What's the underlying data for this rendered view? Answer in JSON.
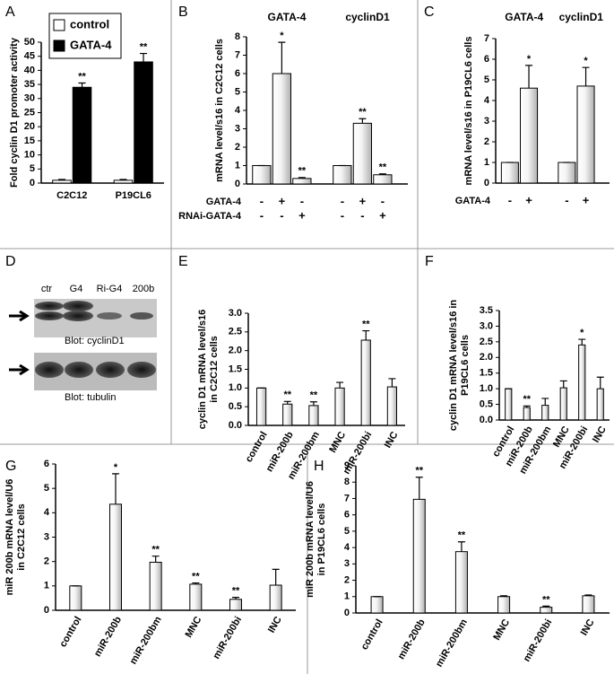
{
  "chart_data": [
    {
      "type": "bar",
      "panel": "A",
      "ylabel": [
        "Fold cyclin D1 promoter activity"
      ],
      "categories": [
        "C2C12",
        "P19CL6"
      ],
      "series": [
        {
          "name": "control",
          "color": "#ffffff",
          "values": [
            1,
            1
          ],
          "errors": [
            0.3,
            0.3
          ],
          "stars": [
            null,
            null
          ]
        },
        {
          "name": "GATA-4",
          "color": "#000000",
          "values": [
            34,
            43
          ],
          "errors": [
            1.5,
            3
          ],
          "stars": [
            "**",
            "**"
          ]
        }
      ],
      "ylim": [
        0,
        50
      ],
      "yticks": [
        0,
        5,
        10,
        15,
        20,
        25,
        30,
        35,
        40,
        45,
        50
      ]
    },
    {
      "type": "bar",
      "panel": "B",
      "ylabel": [
        "mRNA level/s16 in C2C12 cells"
      ],
      "groups": [
        "GATA-4",
        "cyclinD1"
      ],
      "values": [
        1,
        6,
        0.3,
        1,
        3.3,
        0.5
      ],
      "errors": [
        0,
        1.7,
        0.05,
        0,
        0.25,
        0.05
      ],
      "stars": [
        null,
        "*",
        "**",
        null,
        "**",
        "**"
      ],
      "color": "#b0b0b0",
      "conditions": [
        {
          "name": "GATA-4",
          "signs": [
            "-",
            "+",
            "-",
            "-",
            "+",
            "-"
          ]
        },
        {
          "name": "RNAi-GATA-4",
          "signs": [
            "-",
            "-",
            "+",
            "-",
            "-",
            "+"
          ]
        }
      ],
      "ylim": [
        0,
        8
      ],
      "yticks": [
        0,
        1,
        2,
        3,
        4,
        5,
        6,
        7,
        8
      ]
    },
    {
      "type": "bar",
      "panel": "C",
      "ylabel": [
        "mRNA level/s16 in P19CL6 cells"
      ],
      "groups": [
        "GATA-4",
        "cyclinD1"
      ],
      "values": [
        1,
        4.6,
        1,
        4.7
      ],
      "errors": [
        0,
        1.1,
        0,
        0.9
      ],
      "stars": [
        null,
        "*",
        null,
        "*"
      ],
      "color": "#b0b0b0",
      "conditions": [
        {
          "name": "GATA-4",
          "signs": [
            "-",
            "+",
            "-",
            "+"
          ]
        }
      ],
      "ylim": [
        0,
        7
      ],
      "yticks": [
        0,
        1,
        2,
        3,
        4,
        5,
        6,
        7
      ]
    },
    {
      "type": "bar",
      "panel": "E",
      "ylabel": [
        "cyclin D1 mRNA level/s16",
        "in C2C12 cells"
      ],
      "categories": [
        "control",
        "miR-200b",
        "miR-200bm",
        "MNC",
        "miR-200bi",
        "INC"
      ],
      "values": [
        1,
        0.57,
        0.53,
        1,
        2.28,
        1.03
      ],
      "errors": [
        0,
        0.07,
        0.1,
        0.15,
        0.25,
        0.22
      ],
      "stars": [
        null,
        "**",
        "**",
        null,
        "**",
        null
      ],
      "color": "#b0b0b0",
      "ylim": [
        0,
        3
      ],
      "yticks": [
        {
          "value": 0,
          "label": "0.0"
        },
        {
          "value": 0.5,
          "label": "0.5"
        },
        {
          "value": 1,
          "label": "1.0"
        },
        {
          "value": 1.5,
          "label": "1.5"
        },
        {
          "value": 2,
          "label": "2.0"
        },
        {
          "value": 2.5,
          "label": "2.5"
        },
        {
          "value": 3,
          "label": "3.0"
        }
      ]
    },
    {
      "type": "bar",
      "panel": "F",
      "ylabel": [
        "cyclin D1 mRNA level/s16 in",
        "P19CL6 cells"
      ],
      "categories": [
        "control",
        "miR-200b",
        "miR-200bm",
        "MNC",
        "miR-200bi",
        "INC"
      ],
      "values": [
        1,
        0.4,
        0.47,
        1.03,
        2.4,
        1
      ],
      "errors": [
        0,
        0.05,
        0.22,
        0.22,
        0.18,
        0.37
      ],
      "stars": [
        null,
        "**",
        null,
        null,
        "*",
        null
      ],
      "color": "#b0b0b0",
      "ylim": [
        0,
        3.5
      ],
      "yticks": [
        {
          "value": 0,
          "label": "0.0"
        },
        {
          "value": 0.5,
          "label": "0.5"
        },
        {
          "value": 1,
          "label": "1.0"
        },
        {
          "value": 1.5,
          "label": "1.5"
        },
        {
          "value": 2,
          "label": "2.0"
        },
        {
          "value": 2.5,
          "label": "2.5"
        },
        {
          "value": 3,
          "label": "3.0"
        },
        {
          "value": 3.5,
          "label": "3.5"
        }
      ]
    },
    {
      "type": "bar",
      "panel": "G",
      "ylabel": [
        "miR 200b mRNA level/U6",
        "in C2C12 cells"
      ],
      "categories": [
        "control",
        "miR-200b",
        "miR-200bm",
        "MNC",
        "miR-200bi",
        "INC"
      ],
      "values": [
        1,
        4.35,
        1.97,
        1.07,
        0.45,
        1.03
      ],
      "errors": [
        0,
        1.25,
        0.25,
        0.05,
        0.08,
        0.65
      ],
      "stars": [
        null,
        "*",
        "**",
        "**",
        "**",
        null
      ],
      "color": "#b0b0b0",
      "ylim": [
        0,
        6
      ],
      "yticks": [
        0,
        1,
        2,
        3,
        4,
        5,
        6
      ]
    },
    {
      "type": "bar",
      "panel": "H",
      "ylabel": [
        "miR 200b mRNA level/U6",
        "in P19CL6 cells"
      ],
      "categories": [
        "control",
        "miR-200b",
        "miR-200bm",
        "MNC",
        "miR-200bi",
        "INC"
      ],
      "values": [
        1,
        6.95,
        3.75,
        1,
        0.35,
        1.05
      ],
      "errors": [
        0,
        1.35,
        0.6,
        0.05,
        0.07,
        0.05
      ],
      "stars": [
        null,
        "**",
        "**",
        null,
        "**",
        null
      ],
      "color": "#b0b0b0",
      "ylim": [
        0,
        9
      ],
      "yticks": [
        0,
        1,
        2,
        3,
        4,
        5,
        6,
        7,
        8,
        9
      ]
    }
  ],
  "blot": {
    "panel": "D",
    "lanes": [
      "ctr",
      "G4",
      "Ri-G4",
      "200b"
    ],
    "blots": [
      "Blot:  cyclinD1",
      "Blot:  tubulin"
    ]
  }
}
